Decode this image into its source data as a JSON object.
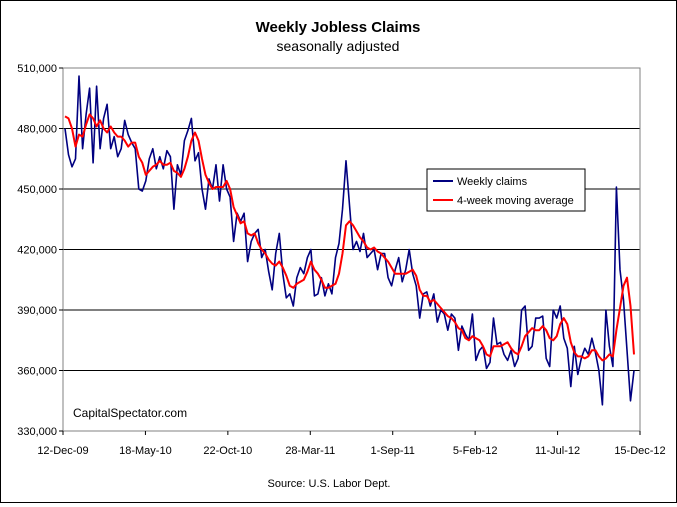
{
  "chart_data": {
    "type": "line",
    "title": "Weekly Jobless Claims",
    "subtitle": "seasonally adjusted",
    "source": "Source: U.S. Labor Dept.",
    "watermark": "CapitalSpectator.com",
    "xlabel": "",
    "ylabel": "",
    "ylim": [
      330000,
      510000
    ],
    "yticks": [
      "330,000",
      "360,000",
      "390,000",
      "420,000",
      "450,000",
      "480,000",
      "510,000"
    ],
    "xticks": [
      "12-Dec-09",
      "18-May-10",
      "22-Oct-10",
      "28-Mar-11",
      "1-Sep-11",
      "5-Feb-12",
      "11-Jul-12",
      "15-Dec-12"
    ],
    "x_start": "2009-12-12",
    "x_end": "2012-12-15",
    "grid": "horizontal",
    "legend_position": "right",
    "series": [
      {
        "name": "Weekly claims",
        "color": "#000080",
        "values": [
          480000,
          467000,
          461000,
          465000,
          506000,
          470000,
          487000,
          500000,
          463000,
          501000,
          470000,
          485000,
          492000,
          470000,
          476000,
          466000,
          470000,
          484000,
          477000,
          473000,
          470000,
          450000,
          449000,
          454000,
          465000,
          470000,
          460000,
          466000,
          460000,
          469000,
          466000,
          440000,
          462000,
          457000,
          474000,
          479000,
          485000,
          464000,
          468000,
          450000,
          440000,
          455000,
          450000,
          462000,
          444000,
          462000,
          450000,
          446000,
          424000,
          438000,
          434000,
          438000,
          414000,
          424000,
          428000,
          430000,
          416000,
          420000,
          409000,
          400000,
          418000,
          428000,
          408000,
          396000,
          398000,
          392000,
          406000,
          411000,
          408000,
          416000,
          420000,
          397000,
          398000,
          406000,
          397000,
          403000,
          398000,
          416000,
          423000,
          440000,
          464000,
          442000,
          420000,
          424000,
          419000,
          428000,
          416000,
          418000,
          420000,
          410000,
          418000,
          418000,
          406000,
          402000,
          410000,
          416000,
          404000,
          410000,
          420000,
          408000,
          402000,
          386000,
          398000,
          399000,
          392000,
          398000,
          384000,
          390000,
          388000,
          380000,
          388000,
          386000,
          370000,
          382000,
          378000,
          375000,
          388000,
          365000,
          370000,
          372000,
          361000,
          364000,
          386000,
          373000,
          374000,
          368000,
          365000,
          370000,
          362000,
          366000,
          390000,
          392000,
          370000,
          372000,
          386000,
          386000,
          387000,
          366000,
          362000,
          390000,
          386000,
          392000,
          376000,
          371000,
          352000,
          372000,
          358000,
          366000,
          371000,
          368000,
          376000,
          369000,
          360000,
          343000,
          390000,
          372000,
          362000,
          451000,
          410000,
          395000,
          370000,
          345000,
          360000
        ]
      },
      {
        "name": "4-week moving average",
        "color": "#ff0000",
        "values": [
          486000,
          485000,
          480000,
          471000,
          477000,
          476000,
          482000,
          487000,
          485000,
          481000,
          484000,
          480000,
          478000,
          481000,
          478000,
          476000,
          476000,
          474000,
          471000,
          473000,
          473000,
          466000,
          463000,
          457000,
          459000,
          461000,
          462000,
          464000,
          462000,
          462000,
          463000,
          459000,
          458000,
          456000,
          460000,
          466000,
          474000,
          478000,
          474000,
          465000,
          457000,
          453000,
          450000,
          451000,
          451000,
          451000,
          454000,
          450000,
          441000,
          437000,
          433000,
          434000,
          428000,
          427000,
          428000,
          423000,
          420000,
          418000,
          415000,
          413000,
          412000,
          414000,
          411000,
          407000,
          402000,
          401000,
          403000,
          404000,
          405000,
          409000,
          414000,
          410000,
          408000,
          405000,
          401000,
          401000,
          402000,
          403000,
          408000,
          418000,
          432000,
          434000,
          432000,
          429000,
          426000,
          424000,
          421000,
          420000,
          421000,
          419000,
          418000,
          416000,
          414000,
          411000,
          408000,
          408000,
          408000,
          408000,
          409000,
          410000,
          407000,
          400000,
          397000,
          397000,
          394000,
          395000,
          393000,
          391000,
          389000,
          387000,
          386000,
          384000,
          381000,
          380000,
          376000,
          375000,
          377000,
          376000,
          375000,
          372000,
          368000,
          367000,
          372000,
          372000,
          372000,
          373000,
          374000,
          371000,
          369000,
          368000,
          372000,
          377000,
          379000,
          381000,
          380000,
          380000,
          382000,
          380000,
          376000,
          375000,
          377000,
          383000,
          386000,
          383000,
          374000,
          369000,
          367000,
          367000,
          366000,
          367000,
          370000,
          370000,
          367000,
          365000,
          366000,
          368000,
          367000,
          380000,
          391000,
          402000,
          406000,
          392000,
          368000
        ]
      }
    ]
  }
}
